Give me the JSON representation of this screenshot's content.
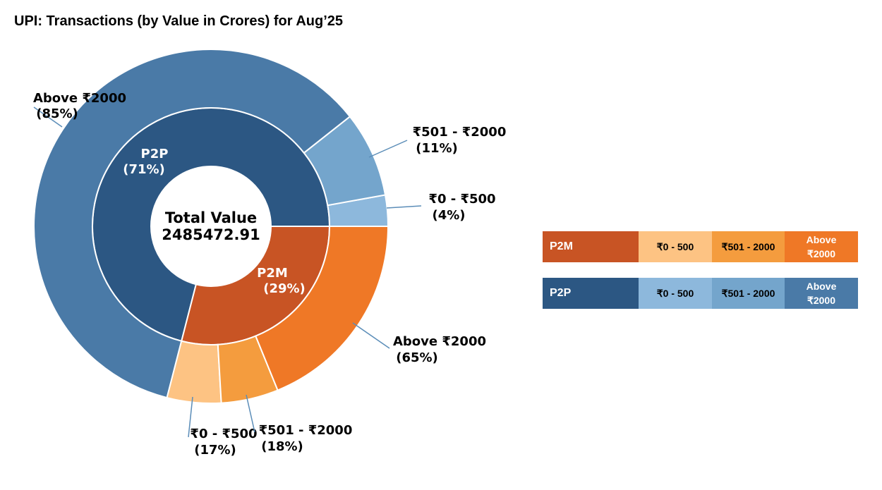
{
  "title": "UPI: Transactions (by Value in Crores) for Aug’25",
  "chart_data": {
    "type": "nested-donut",
    "center_label": [
      "Total Value",
      "2485472.91"
    ],
    "total": 2485472.91,
    "inner": [
      {
        "name": "P2P",
        "share": 71,
        "label": "P2P",
        "pct_label": "(71%)",
        "color": "#2c5783"
      },
      {
        "name": "P2M",
        "share": 29,
        "label": "P2M",
        "pct_label": "(29%)",
        "color": "#c85424"
      }
    ],
    "outer": [
      {
        "group": "P2P",
        "name": "₹0 - ₹500",
        "share": 4,
        "label": "₹0 - ₹500",
        "pct_label": "(4%)",
        "color": "#8db8dc"
      },
      {
        "group": "P2P",
        "name": "₹501 - ₹2000",
        "share": 11,
        "label": "₹501 - ₹2000",
        "pct_label": "(11%)",
        "color": "#74a5cc"
      },
      {
        "group": "P2P",
        "name": "Above ₹2000",
        "share": 85,
        "label": "Above ₹2000",
        "pct_label": "(85%)",
        "color": "#4a7aa7"
      },
      {
        "group": "P2M",
        "name": "₹0 - ₹500",
        "share": 17,
        "label": "₹0 - ₹500",
        "pct_label": "(17%)",
        "color": "#fdc383"
      },
      {
        "group": "P2M",
        "name": "₹501 - ₹2000",
        "share": 18,
        "label": "₹501 - ₹2000",
        "pct_label": "(18%)",
        "color": "#f49c3e"
      },
      {
        "group": "P2M",
        "name": "Above ₹2000",
        "share": 65,
        "label": "Above ₹2000",
        "pct_label": "(65%)",
        "color": "#ef7826"
      }
    ]
  },
  "legend": [
    {
      "name": "P2M",
      "main_color": "#c85424",
      "cells": [
        {
          "text": "₹0 - 500",
          "color": "#fdc383",
          "white": false
        },
        {
          "text": "₹501 - 2000",
          "color": "#f49c3e",
          "white": false
        },
        {
          "text": "Above\n₹2000",
          "color": "#ef7826",
          "white": true
        }
      ]
    },
    {
      "name": "P2P",
      "main_color": "#2c5783",
      "cells": [
        {
          "text": "₹0 - 500",
          "color": "#8db8dc",
          "white": false
        },
        {
          "text": "₹501 - 2000",
          "color": "#74a5cc",
          "white": false
        },
        {
          "text": "Above\n₹2000",
          "color": "#4a7aa7",
          "white": true
        }
      ]
    }
  ]
}
